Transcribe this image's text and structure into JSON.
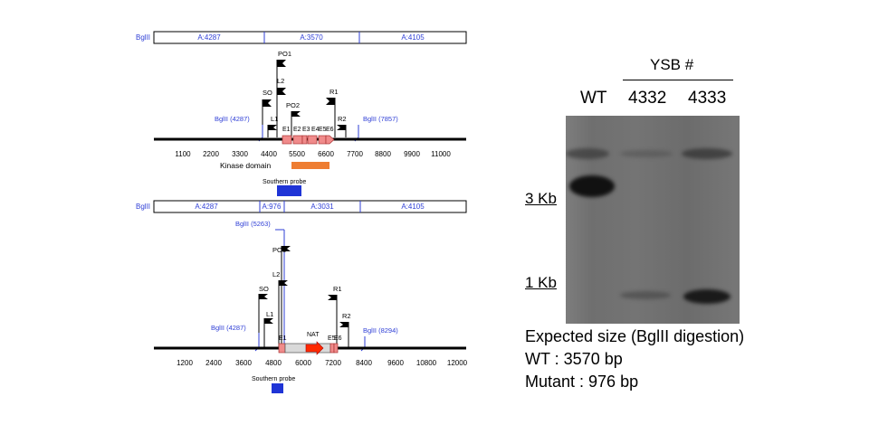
{
  "wt_map": {
    "segments": [
      "A:4287",
      "A:3570",
      "A:4105"
    ],
    "seg_label_left": "BglII",
    "ticks": [
      "1100",
      "2200",
      "3300",
      "4400",
      "5500",
      "6600",
      "7700",
      "8800",
      "9900",
      "11000"
    ],
    "sites": [
      "BglII (4287)",
      "BglII (7857)"
    ],
    "primers": [
      "PO1",
      "L2",
      "SO",
      "L1",
      "PO2",
      "R1",
      "R2"
    ],
    "exons": [
      "E1",
      "E2",
      "E3",
      "E4",
      "E5",
      "E6"
    ],
    "domain_label": "Kinase domain",
    "probe_label": "Southern probe"
  },
  "mut_map": {
    "segments": [
      "A:4287",
      "A:976",
      "A:3031",
      "A:4105"
    ],
    "seg_label_left": "BglII",
    "ticks": [
      "1200",
      "2400",
      "3600",
      "4800",
      "6000",
      "7200",
      "8400",
      "9600",
      "10800",
      "12000"
    ],
    "sites": [
      "BglII (4287)",
      "BglII (5263)",
      "BglII (8294)"
    ],
    "primers": [
      "PO1",
      "L2",
      "SO",
      "L1",
      "R1",
      "R2"
    ],
    "exons": [
      "E1",
      "E5",
      "E6"
    ],
    "marker_label": "NAT",
    "probe_label": "Southern probe"
  },
  "gel": {
    "group_label": "YSB #",
    "lanes": [
      "WT",
      "4332",
      "4333"
    ],
    "markers": [
      "3 Kb",
      "1 Kb"
    ]
  },
  "caption": {
    "line1": "Expected size (BglII digestion)",
    "line2": "WT : 3570 bp",
    "line3": "Mutant : 976 bp"
  },
  "colors": {
    "site_blue": "#2f3fd6",
    "exon_fill": "#f08b8b",
    "domain_orange": "#ee7d32",
    "probe_blue": "#1f34d6",
    "nat_red": "#ff2a00"
  }
}
